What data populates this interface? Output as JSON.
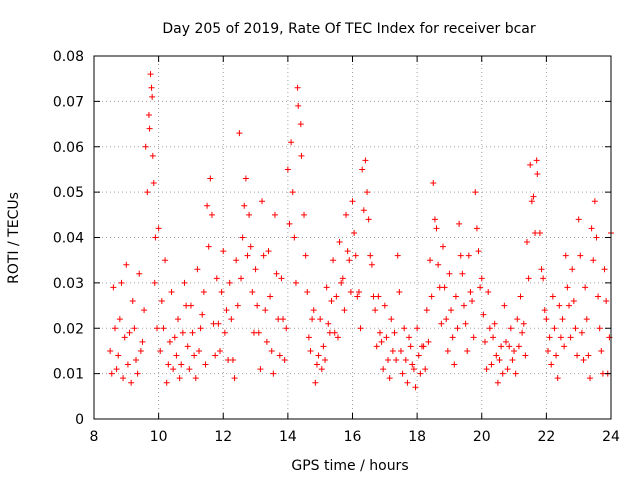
{
  "chart_data": {
    "type": "scatter",
    "title": "Day 205 of 2019, Rate Of TEC Index for receiver bcar",
    "xlabel": "GPS time / hours",
    "ylabel": "ROTI / TECUs",
    "xlim": [
      8,
      24
    ],
    "ylim": [
      0,
      0.08
    ],
    "x_ticks": [
      "8",
      "10",
      "12",
      "14",
      "16",
      "18",
      "20",
      "22",
      "24"
    ],
    "y_ticks": [
      "0",
      "0.01",
      "0.02",
      "0.03",
      "0.04",
      "0.05",
      "0.06",
      "0.07",
      "0.08"
    ],
    "grid": true,
    "marker": "+",
    "series": [
      {
        "name": "ROTI",
        "color": "#ff0000",
        "points": [
          [
            8.5,
            0.015
          ],
          [
            8.6,
            0.029
          ],
          [
            8.7,
            0.011
          ],
          [
            8.8,
            0.022
          ],
          [
            8.9,
            0.009
          ],
          [
            9.0,
            0.034
          ],
          [
            9.1,
            0.019
          ],
          [
            9.2,
            0.026
          ],
          [
            9.3,
            0.013
          ],
          [
            9.4,
            0.032
          ],
          [
            9.5,
            0.017
          ],
          [
            9.6,
            0.06
          ],
          [
            9.7,
            0.067
          ],
          [
            9.75,
            0.076
          ],
          [
            9.8,
            0.071
          ],
          [
            9.85,
            0.052
          ],
          [
            9.9,
            0.04
          ],
          [
            10.0,
            0.042
          ],
          [
            10.1,
            0.026
          ],
          [
            10.2,
            0.035
          ],
          [
            10.3,
            0.012
          ],
          [
            10.4,
            0.028
          ],
          [
            10.5,
            0.018
          ],
          [
            10.6,
            0.022
          ],
          [
            10.7,
            0.012
          ],
          [
            10.8,
            0.03
          ],
          [
            10.9,
            0.016
          ],
          [
            11.0,
            0.025
          ],
          [
            11.1,
            0.014
          ],
          [
            11.2,
            0.033
          ],
          [
            11.3,
            0.02
          ],
          [
            11.4,
            0.028
          ],
          [
            11.5,
            0.047
          ],
          [
            11.6,
            0.053
          ],
          [
            11.7,
            0.021
          ],
          [
            11.8,
            0.031
          ],
          [
            11.9,
            0.015
          ],
          [
            12.0,
            0.037
          ],
          [
            12.1,
            0.024
          ],
          [
            12.2,
            0.03
          ],
          [
            12.3,
            0.013
          ],
          [
            12.4,
            0.035
          ],
          [
            12.5,
            0.063
          ],
          [
            12.6,
            0.04
          ],
          [
            12.7,
            0.053
          ],
          [
            12.8,
            0.045
          ],
          [
            12.9,
            0.028
          ],
          [
            13.0,
            0.033
          ],
          [
            13.1,
            0.019
          ],
          [
            13.2,
            0.048
          ],
          [
            13.3,
            0.024
          ],
          [
            13.4,
            0.037
          ],
          [
            13.5,
            0.015
          ],
          [
            13.6,
            0.045
          ],
          [
            13.7,
            0.022
          ],
          [
            13.8,
            0.031
          ],
          [
            13.9,
            0.013
          ],
          [
            14.0,
            0.055
          ],
          [
            14.1,
            0.061
          ],
          [
            14.2,
            0.04
          ],
          [
            14.3,
            0.073
          ],
          [
            14.4,
            0.065
          ],
          [
            14.5,
            0.045
          ],
          [
            14.6,
            0.028
          ],
          [
            14.7,
            0.015
          ],
          [
            14.8,
            0.024
          ],
          [
            14.9,
            0.012
          ],
          [
            15.0,
            0.022
          ],
          [
            15.1,
            0.016
          ],
          [
            15.2,
            0.029
          ],
          [
            15.3,
            0.019
          ],
          [
            15.4,
            0.035
          ],
          [
            15.5,
            0.027
          ],
          [
            15.6,
            0.039
          ],
          [
            15.7,
            0.031
          ],
          [
            15.8,
            0.045
          ],
          [
            15.9,
            0.035
          ],
          [
            16.0,
            0.048
          ],
          [
            16.1,
            0.036
          ],
          [
            16.2,
            0.028
          ],
          [
            16.3,
            0.055
          ],
          [
            16.4,
            0.057
          ],
          [
            16.5,
            0.044
          ],
          [
            16.6,
            0.034
          ],
          [
            16.7,
            0.024
          ],
          [
            16.8,
            0.027
          ],
          [
            16.9,
            0.017
          ],
          [
            17.0,
            0.025
          ],
          [
            17.1,
            0.013
          ],
          [
            17.2,
            0.022
          ],
          [
            17.3,
            0.019
          ],
          [
            17.4,
            0.036
          ],
          [
            17.5,
            0.015
          ],
          [
            17.6,
            0.02
          ],
          [
            17.7,
            0.008
          ],
          [
            17.8,
            0.016
          ],
          [
            17.9,
            0.011
          ],
          [
            18.0,
            0.02
          ],
          [
            18.1,
            0.01
          ],
          [
            18.2,
            0.016
          ],
          [
            18.3,
            0.024
          ],
          [
            18.4,
            0.035
          ],
          [
            18.5,
            0.052
          ],
          [
            18.6,
            0.042
          ],
          [
            18.7,
            0.029
          ],
          [
            18.8,
            0.038
          ],
          [
            18.9,
            0.022
          ],
          [
            19.0,
            0.032
          ],
          [
            19.1,
            0.018
          ],
          [
            19.2,
            0.027
          ],
          [
            19.3,
            0.043
          ],
          [
            19.4,
            0.032
          ],
          [
            19.5,
            0.021
          ],
          [
            19.6,
            0.036
          ],
          [
            19.7,
            0.026
          ],
          [
            19.8,
            0.05
          ],
          [
            19.9,
            0.037
          ],
          [
            20.0,
            0.031
          ],
          [
            20.1,
            0.017
          ],
          [
            20.2,
            0.028
          ],
          [
            20.3,
            0.012
          ],
          [
            20.4,
            0.021
          ],
          [
            20.5,
            0.008
          ],
          [
            20.6,
            0.016
          ],
          [
            20.7,
            0.025
          ],
          [
            20.8,
            0.011
          ],
          [
            20.9,
            0.02
          ],
          [
            21.0,
            0.015
          ],
          [
            21.1,
            0.022
          ],
          [
            21.2,
            0.027
          ],
          [
            21.3,
            0.021
          ],
          [
            21.4,
            0.039
          ],
          [
            21.5,
            0.056
          ],
          [
            21.6,
            0.049
          ],
          [
            21.7,
            0.057
          ],
          [
            21.8,
            0.041
          ],
          [
            21.9,
            0.031
          ],
          [
            22.0,
            0.022
          ],
          [
            22.1,
            0.018
          ],
          [
            22.2,
            0.027
          ],
          [
            22.3,
            0.014
          ],
          [
            22.4,
            0.025
          ],
          [
            22.5,
            0.022
          ],
          [
            22.6,
            0.036
          ],
          [
            22.7,
            0.025
          ],
          [
            22.8,
            0.033
          ],
          [
            22.9,
            0.02
          ],
          [
            23.0,
            0.044
          ],
          [
            23.1,
            0.019
          ],
          [
            23.2,
            0.029
          ],
          [
            23.3,
            0.014
          ],
          [
            23.4,
            0.042
          ],
          [
            23.5,
            0.048
          ],
          [
            23.6,
            0.027
          ],
          [
            23.7,
            0.015
          ],
          [
            23.8,
            0.033
          ],
          [
            23.9,
            0.01
          ],
          [
            24.0,
            0.041
          ],
          [
            8.55,
            0.01
          ],
          [
            8.65,
            0.02
          ],
          [
            8.75,
            0.014
          ],
          [
            8.85,
            0.03
          ],
          [
            8.95,
            0.018
          ],
          [
            9.05,
            0.012
          ],
          [
            9.15,
            0.008
          ],
          [
            9.25,
            0.02
          ],
          [
            9.35,
            0.01
          ],
          [
            9.45,
            0.015
          ],
          [
            9.55,
            0.024
          ],
          [
            9.65,
            0.05
          ],
          [
            9.72,
            0.064
          ],
          [
            9.78,
            0.073
          ],
          [
            9.82,
            0.058
          ],
          [
            9.88,
            0.03
          ],
          [
            9.95,
            0.02
          ],
          [
            10.05,
            0.015
          ],
          [
            10.15,
            0.02
          ],
          [
            10.25,
            0.008
          ],
          [
            10.35,
            0.017
          ],
          [
            10.45,
            0.011
          ],
          [
            10.55,
            0.014
          ],
          [
            10.65,
            0.009
          ],
          [
            10.75,
            0.019
          ],
          [
            10.85,
            0.025
          ],
          [
            10.95,
            0.011
          ],
          [
            11.05,
            0.019
          ],
          [
            11.15,
            0.009
          ],
          [
            11.25,
            0.015
          ],
          [
            11.35,
            0.023
          ],
          [
            11.45,
            0.012
          ],
          [
            11.55,
            0.038
          ],
          [
            11.65,
            0.045
          ],
          [
            11.75,
            0.014
          ],
          [
            11.85,
            0.021
          ],
          [
            11.95,
            0.028
          ],
          [
            12.05,
            0.019
          ],
          [
            12.15,
            0.013
          ],
          [
            12.25,
            0.022
          ],
          [
            12.35,
            0.009
          ],
          [
            12.45,
            0.025
          ],
          [
            12.55,
            0.031
          ],
          [
            12.65,
            0.047
          ],
          [
            12.75,
            0.036
          ],
          [
            12.85,
            0.038
          ],
          [
            12.95,
            0.019
          ],
          [
            13.05,
            0.025
          ],
          [
            13.15,
            0.011
          ],
          [
            13.25,
            0.036
          ],
          [
            13.35,
            0.017
          ],
          [
            13.45,
            0.027
          ],
          [
            13.55,
            0.01
          ],
          [
            13.65,
            0.032
          ],
          [
            13.75,
            0.014
          ],
          [
            13.85,
            0.022
          ],
          [
            13.95,
            0.02
          ],
          [
            14.05,
            0.043
          ],
          [
            14.15,
            0.05
          ],
          [
            14.25,
            0.03
          ],
          [
            14.32,
            0.069
          ],
          [
            14.42,
            0.058
          ],
          [
            14.55,
            0.036
          ],
          [
            14.65,
            0.018
          ],
          [
            14.75,
            0.022
          ],
          [
            14.85,
            0.008
          ],
          [
            14.95,
            0.014
          ],
          [
            15.05,
            0.011
          ],
          [
            15.15,
            0.013
          ],
          [
            15.25,
            0.021
          ],
          [
            15.35,
            0.026
          ],
          [
            15.45,
            0.019
          ],
          [
            15.55,
            0.018
          ],
          [
            15.65,
            0.03
          ],
          [
            15.75,
            0.024
          ],
          [
            15.85,
            0.037
          ],
          [
            15.95,
            0.028
          ],
          [
            16.05,
            0.041
          ],
          [
            16.15,
            0.027
          ],
          [
            16.25,
            0.02
          ],
          [
            16.35,
            0.046
          ],
          [
            16.45,
            0.05
          ],
          [
            16.55,
            0.036
          ],
          [
            16.65,
            0.027
          ],
          [
            16.75,
            0.016
          ],
          [
            16.85,
            0.019
          ],
          [
            16.95,
            0.011
          ],
          [
            17.05,
            0.018
          ],
          [
            17.15,
            0.009
          ],
          [
            17.25,
            0.015
          ],
          [
            17.35,
            0.013
          ],
          [
            17.45,
            0.028
          ],
          [
            17.55,
            0.01
          ],
          [
            17.65,
            0.013
          ],
          [
            17.75,
            0.018
          ],
          [
            17.85,
            0.012
          ],
          [
            17.95,
            0.007
          ],
          [
            18.05,
            0.014
          ],
          [
            18.15,
            0.016
          ],
          [
            18.25,
            0.011
          ],
          [
            18.35,
            0.017
          ],
          [
            18.45,
            0.027
          ],
          [
            18.55,
            0.044
          ],
          [
            18.65,
            0.034
          ],
          [
            18.75,
            0.021
          ],
          [
            18.85,
            0.029
          ],
          [
            18.95,
            0.015
          ],
          [
            19.05,
            0.024
          ],
          [
            19.15,
            0.012
          ],
          [
            19.25,
            0.02
          ],
          [
            19.35,
            0.036
          ],
          [
            19.45,
            0.025
          ],
          [
            19.55,
            0.015
          ],
          [
            19.65,
            0.028
          ],
          [
            19.75,
            0.018
          ],
          [
            19.85,
            0.042
          ],
          [
            19.95,
            0.029
          ],
          [
            20.05,
            0.023
          ],
          [
            20.15,
            0.011
          ],
          [
            20.25,
            0.02
          ],
          [
            20.35,
            0.018
          ],
          [
            20.45,
            0.014
          ],
          [
            20.55,
            0.013
          ],
          [
            20.65,
            0.01
          ],
          [
            20.75,
            0.017
          ],
          [
            20.85,
            0.016
          ],
          [
            20.95,
            0.013
          ],
          [
            21.05,
            0.01
          ],
          [
            21.15,
            0.016
          ],
          [
            21.25,
            0.019
          ],
          [
            21.35,
            0.014
          ],
          [
            21.45,
            0.031
          ],
          [
            21.55,
            0.048
          ],
          [
            21.65,
            0.041
          ],
          [
            21.72,
            0.054
          ],
          [
            21.85,
            0.033
          ],
          [
            21.95,
            0.024
          ],
          [
            22.05,
            0.015
          ],
          [
            22.15,
            0.012
          ],
          [
            22.25,
            0.02
          ],
          [
            22.35,
            0.009
          ],
          [
            22.45,
            0.018
          ],
          [
            22.55,
            0.016
          ],
          [
            22.65,
            0.029
          ],
          [
            22.75,
            0.018
          ],
          [
            22.85,
            0.026
          ],
          [
            22.95,
            0.014
          ],
          [
            23.05,
            0.036
          ],
          [
            23.15,
            0.013
          ],
          [
            23.25,
            0.022
          ],
          [
            23.35,
            0.009
          ],
          [
            23.45,
            0.035
          ],
          [
            23.55,
            0.04
          ],
          [
            23.65,
            0.02
          ],
          [
            23.75,
            0.01
          ],
          [
            23.85,
            0.026
          ],
          [
            23.95,
            0.018
          ]
        ]
      }
    ]
  }
}
